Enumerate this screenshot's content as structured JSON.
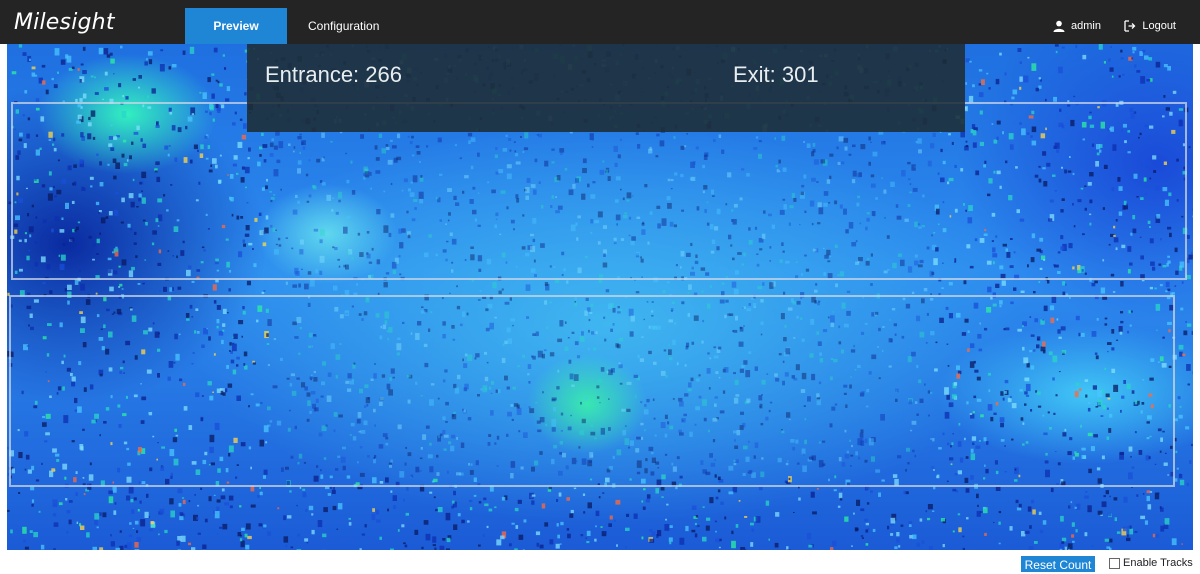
{
  "brand": {
    "name": "Milesight"
  },
  "nav": {
    "tabs": [
      {
        "label": "Preview",
        "active": true
      },
      {
        "label": "Configuration",
        "active": false
      }
    ],
    "user": {
      "name": "admin",
      "icon": "user-icon"
    },
    "logout": {
      "label": "Logout",
      "icon": "logout-icon"
    }
  },
  "preview": {
    "counter": {
      "entrance": "Entrance: 266",
      "exit": "Exit: 301"
    },
    "regions": 2
  },
  "controls": {
    "reset_label": "Reset Count",
    "enable_tracks_label": "Enable Tracks",
    "enable_tracks_checked": false
  },
  "colors": {
    "accent": "#1f86d6",
    "topbar": "#242424"
  }
}
